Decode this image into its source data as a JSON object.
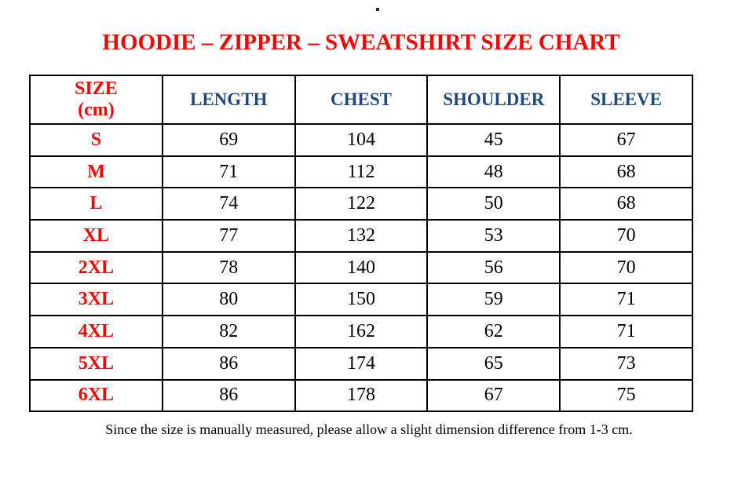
{
  "title": "HOODIE – ZIPPER – SWEATSHIRT SIZE CHART",
  "ui": {
    "size_header": {
      "line1": "SIZE",
      "line2": "(cm)"
    }
  },
  "chart_data": {
    "type": "table",
    "title": "HOODIE – ZIPPER – SWEATSHIRT SIZE CHART",
    "unit": "cm",
    "columns": [
      "SIZE (cm)",
      "LENGTH",
      "CHEST",
      "SHOULDER",
      "SLEEVE"
    ],
    "rows": [
      [
        "S",
        "69",
        "104",
        "45",
        "67"
      ],
      [
        "M",
        "71",
        "112",
        "48",
        "68"
      ],
      [
        "L",
        "74",
        "122",
        "50",
        "68"
      ],
      [
        "XL",
        "77",
        "132",
        "53",
        "70"
      ],
      [
        "2XL",
        "78",
        "140",
        "56",
        "70"
      ],
      [
        "3XL",
        "80",
        "150",
        "59",
        "71"
      ],
      [
        "4XL",
        "82",
        "162",
        "62",
        "71"
      ],
      [
        "5XL",
        "86",
        "174",
        "65",
        "73"
      ],
      [
        "6XL",
        "86",
        "178",
        "67",
        "75"
      ]
    ],
    "note": "Since the size is manually measured, please allow a slight dimension difference from 1-3 cm."
  },
  "colors": {
    "title_red": "#FF0000",
    "header_blue": "#1F497D",
    "value_black": "#000000",
    "border_black": "#000000",
    "background_white": "#FFFFFF"
  }
}
